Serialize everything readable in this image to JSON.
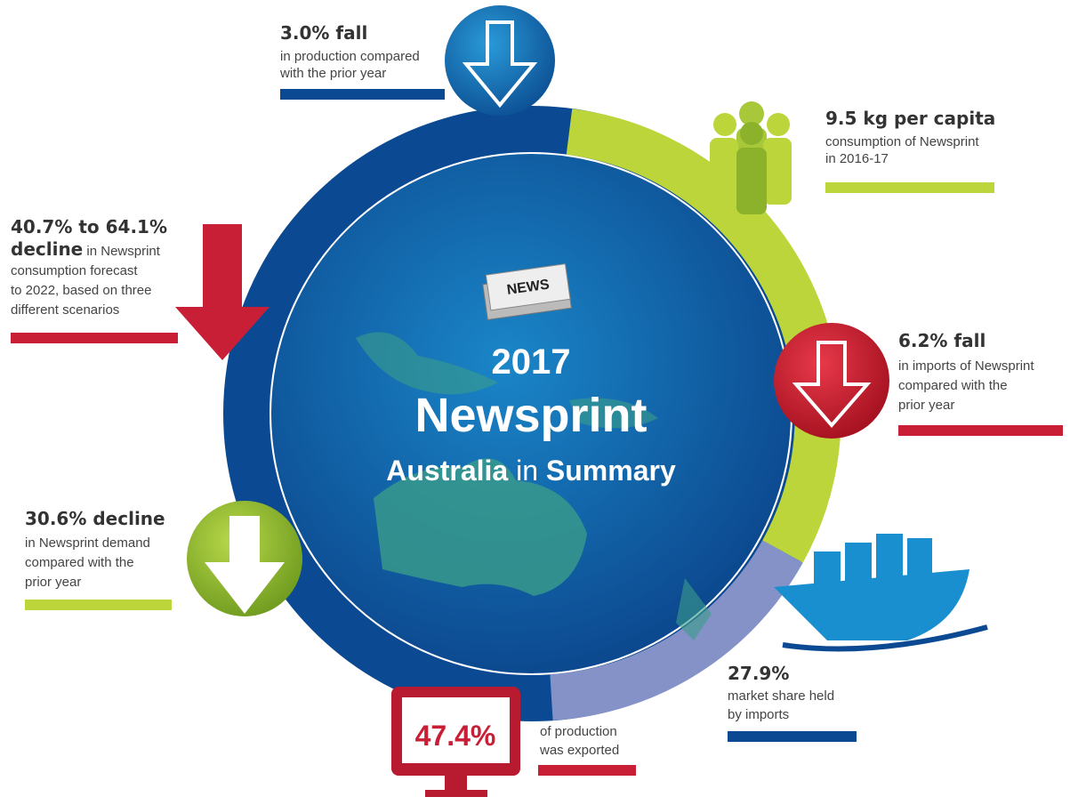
{
  "center": {
    "badge": "NEWS",
    "year": "2017",
    "title": "Newsprint",
    "subtitle": [
      "Australia",
      "in",
      "Summary"
    ]
  },
  "production": {
    "headline": "3.0% fall",
    "lines": [
      "in production compared",
      "with the prior year"
    ]
  },
  "per_capita": {
    "headline": "9.5 kg per capita",
    "lines": [
      "consumption of Newsprint",
      "in 2016-17"
    ]
  },
  "forecast": {
    "headline": "40.7% to 64.1%",
    "lead": "decline",
    "lines": [
      " in Newsprint",
      "consumption forecast",
      "to 2022, based on three",
      "different scenarios"
    ]
  },
  "imports": {
    "headline": "6.2% fall",
    "lines": [
      "in imports of Newsprint",
      "compared with the",
      "prior year"
    ]
  },
  "demand": {
    "headline": "30.6% decline",
    "lines": [
      "in Newsprint demand",
      "compared with the",
      "prior year"
    ]
  },
  "market_share": {
    "headline": "27.9%",
    "lines": [
      "market share held",
      "by imports"
    ]
  },
  "exported": {
    "headline": "47.4%",
    "lines": [
      "of production",
      "was exported"
    ]
  }
}
